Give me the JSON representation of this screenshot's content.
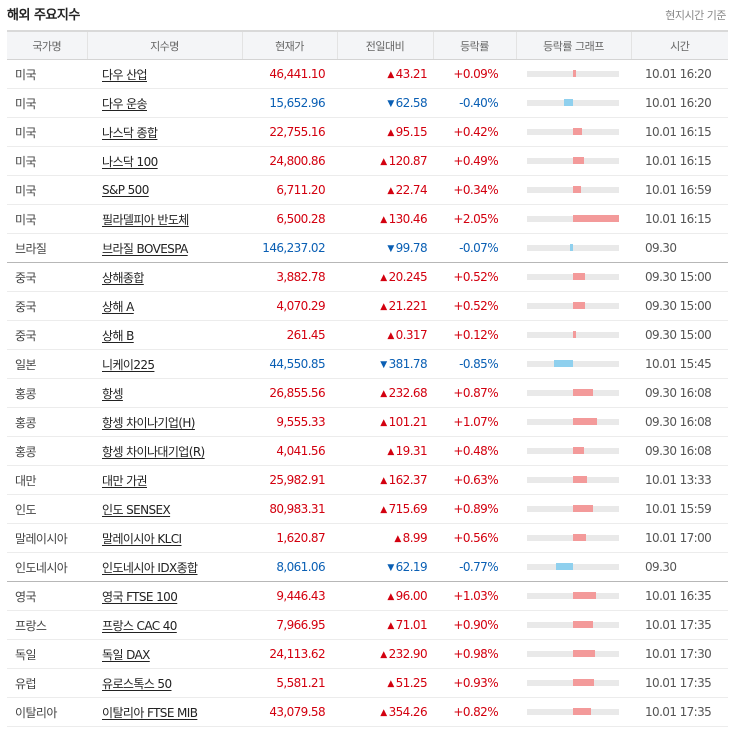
{
  "header": {
    "title": "해외 주요지수",
    "note": "현지시간 기준"
  },
  "columns": [
    "국가명",
    "지수명",
    "현재가",
    "전일대비",
    "등락률",
    "등락률 그래프",
    "시간"
  ],
  "icons": {
    "up": "triangle-up-icon",
    "down": "triangle-down-icon"
  },
  "colors": {
    "up": "#d3000f",
    "down": "#0a5fb4",
    "bar_up": "#f39a9a",
    "bar_down": "#8fd0ee"
  },
  "rows": [
    {
      "country": "미국",
      "name": "다우 산업",
      "price": "46,441.10",
      "change": "43.21",
      "dir": "up",
      "rate": "+0.09%",
      "rate_value": 0.09,
      "time": "10.01 16:20"
    },
    {
      "country": "미국",
      "name": "다우 운송",
      "price": "15,652.96",
      "change": "62.58",
      "dir": "down",
      "rate": "-0.40%",
      "rate_value": -0.4,
      "time": "10.01 16:20"
    },
    {
      "country": "미국",
      "name": "나스닥 종합",
      "price": "22,755.16",
      "change": "95.15",
      "dir": "up",
      "rate": "+0.42%",
      "rate_value": 0.42,
      "time": "10.01 16:15"
    },
    {
      "country": "미국",
      "name": "나스닥 100",
      "price": "24,800.86",
      "change": "120.87",
      "dir": "up",
      "rate": "+0.49%",
      "rate_value": 0.49,
      "time": "10.01 16:15"
    },
    {
      "country": "미국",
      "name": "S&P 500",
      "price": "6,711.20",
      "change": "22.74",
      "dir": "up",
      "rate": "+0.34%",
      "rate_value": 0.34,
      "time": "10.01 16:59"
    },
    {
      "country": "미국",
      "name": "필라델피아 반도체",
      "price": "6,500.28",
      "change": "130.46",
      "dir": "up",
      "rate": "+2.05%",
      "rate_value": 2.05,
      "time": "10.01 16:15"
    },
    {
      "country": "브라질",
      "name": "브라질 BOVESPA",
      "price": "146,237.02",
      "change": "99.78",
      "dir": "down",
      "rate": "-0.07%",
      "rate_value": -0.07,
      "time": "09.30",
      "group_end": true
    },
    {
      "country": "중국",
      "name": "상해종합",
      "price": "3,882.78",
      "change": "20.245",
      "dir": "up",
      "rate": "+0.52%",
      "rate_value": 0.52,
      "time": "09.30 15:00"
    },
    {
      "country": "중국",
      "name": "상해 A",
      "price": "4,070.29",
      "change": "21.221",
      "dir": "up",
      "rate": "+0.52%",
      "rate_value": 0.52,
      "time": "09.30 15:00"
    },
    {
      "country": "중국",
      "name": "상해 B",
      "price": "261.45",
      "change": "0.317",
      "dir": "up",
      "rate": "+0.12%",
      "rate_value": 0.12,
      "time": "09.30 15:00"
    },
    {
      "country": "일본",
      "name": "니케이225",
      "price": "44,550.85",
      "change": "381.78",
      "dir": "down",
      "rate": "-0.85%",
      "rate_value": -0.85,
      "time": "10.01 15:45"
    },
    {
      "country": "홍콩",
      "name": "항셍",
      "price": "26,855.56",
      "change": "232.68",
      "dir": "up",
      "rate": "+0.87%",
      "rate_value": 0.87,
      "time": "09.30 16:08"
    },
    {
      "country": "홍콩",
      "name": "항셍 차이나기업(H)",
      "price": "9,555.33",
      "change": "101.21",
      "dir": "up",
      "rate": "+1.07%",
      "rate_value": 1.07,
      "time": "09.30 16:08"
    },
    {
      "country": "홍콩",
      "name": "항셍 차이나대기업(R)",
      "price": "4,041.56",
      "change": "19.31",
      "dir": "up",
      "rate": "+0.48%",
      "rate_value": 0.48,
      "time": "09.30 16:08"
    },
    {
      "country": "대만",
      "name": "대만 가권",
      "price": "25,982.91",
      "change": "162.37",
      "dir": "up",
      "rate": "+0.63%",
      "rate_value": 0.63,
      "time": "10.01 13:33"
    },
    {
      "country": "인도",
      "name": "인도 SENSEX",
      "price": "80,983.31",
      "change": "715.69",
      "dir": "up",
      "rate": "+0.89%",
      "rate_value": 0.89,
      "time": "10.01 15:59"
    },
    {
      "country": "말레이시아",
      "name": "말레이시아 KLCI",
      "price": "1,620.87",
      "change": "8.99",
      "dir": "up",
      "rate": "+0.56%",
      "rate_value": 0.56,
      "time": "10.01 17:00"
    },
    {
      "country": "인도네시아",
      "name": "인도네시아 IDX종합",
      "price": "8,061.06",
      "change": "62.19",
      "dir": "down",
      "rate": "-0.77%",
      "rate_value": -0.77,
      "time": "09.30",
      "group_end": true
    },
    {
      "country": "영국",
      "name": "영국 FTSE 100",
      "price": "9,446.43",
      "change": "96.00",
      "dir": "up",
      "rate": "+1.03%",
      "rate_value": 1.03,
      "time": "10.01 16:35"
    },
    {
      "country": "프랑스",
      "name": "프랑스 CAC 40",
      "price": "7,966.95",
      "change": "71.01",
      "dir": "up",
      "rate": "+0.90%",
      "rate_value": 0.9,
      "time": "10.01 17:35"
    },
    {
      "country": "독일",
      "name": "독일 DAX",
      "price": "24,113.62",
      "change": "232.90",
      "dir": "up",
      "rate": "+0.98%",
      "rate_value": 0.98,
      "time": "10.01 17:30"
    },
    {
      "country": "유럽",
      "name": "유로스톡스 50",
      "price": "5,581.21",
      "change": "51.25",
      "dir": "up",
      "rate": "+0.93%",
      "rate_value": 0.93,
      "time": "10.01 17:35"
    },
    {
      "country": "이탈리아",
      "name": "이탈리아 FTSE MIB",
      "price": "43,079.58",
      "change": "354.26",
      "dir": "up",
      "rate": "+0.82%",
      "rate_value": 0.82,
      "time": "10.01 17:35"
    }
  ]
}
